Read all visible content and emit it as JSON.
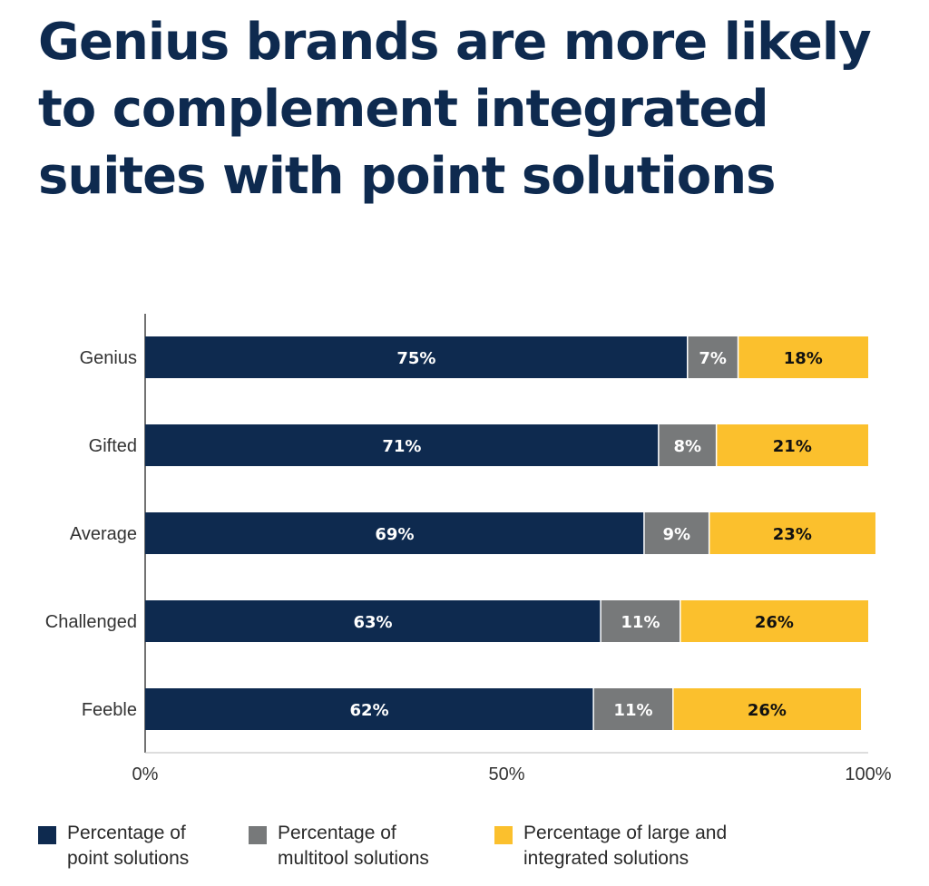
{
  "title": "Genius brands are more likely to complement integrated suites with point solutions",
  "colors": {
    "point": "#0e2a4f",
    "multitool": "#77797a",
    "integrated": "#fbc02d",
    "title": "#0e2a4f"
  },
  "legend": [
    {
      "label": "Percentage of\npoint solutions",
      "color_key": "point"
    },
    {
      "label": "Percentage of\nmultitool solutions",
      "color_key": "multitool"
    },
    {
      "label": "Percentage of large and\nintegrated solutions",
      "color_key": "integrated"
    }
  ],
  "chart_data": {
    "type": "bar",
    "orientation": "horizontal",
    "stacked": true,
    "categories": [
      "Genius",
      "Gifted",
      "Average",
      "Challenged",
      "Feeble"
    ],
    "series": [
      {
        "name": "Percentage of point solutions",
        "values": [
          75,
          71,
          69,
          63,
          62
        ],
        "labels": [
          "75%",
          "71%",
          "69%",
          "63%",
          "62%"
        ]
      },
      {
        "name": "Percentage of multitool solutions",
        "values": [
          7,
          8,
          9,
          11,
          11
        ],
        "labels": [
          "7%",
          "8%",
          "9%",
          "11%",
          "11%"
        ]
      },
      {
        "name": "Percentage of large and integrated solutions",
        "values": [
          18,
          21,
          23,
          26,
          26
        ],
        "labels": [
          "18%",
          "21%",
          "23%",
          "26%",
          "26%"
        ]
      }
    ],
    "xlim": [
      0,
      100
    ],
    "xticks": [
      0,
      50,
      100
    ],
    "xtick_labels": [
      "0%",
      "50%",
      "100%"
    ],
    "grid": false,
    "legend_position": "bottom"
  }
}
